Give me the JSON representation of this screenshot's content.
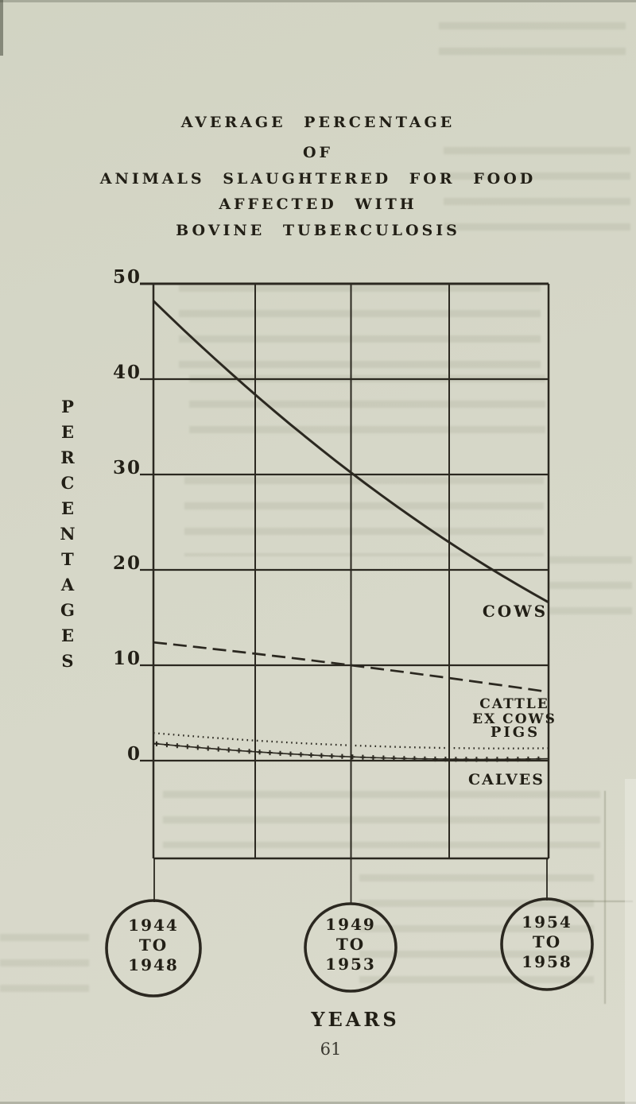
{
  "page": {
    "title_lines": [
      "AVERAGE PERCENTAGE",
      "OF",
      "ANIMALS SLAUGHTERED FOR FOOD",
      "AFFECTED WITH",
      "BOVINE TUBERCULOSIS"
    ],
    "page_number": "61"
  },
  "chart_data": {
    "type": "line",
    "title": "AVERAGE PERCENTAGE OF ANIMALS SLAUGHTERED FOR FOOD AFFECTED WITH BOVINE TUBERCULOSIS",
    "xlabel": "YEARS",
    "ylabel": "PERCENTAGES",
    "ylim": [
      0,
      50
    ],
    "yticks": [
      50,
      40,
      30,
      20,
      10,
      0
    ],
    "ytick_labels": [
      "50",
      "40",
      "30",
      "20",
      "10",
      "0"
    ],
    "grid": true,
    "legend_position": "inline-right",
    "categories": [
      "1944 TO 1948",
      "1949 TO 1953",
      "1954 TO 1958"
    ],
    "category_lines": [
      [
        "1944",
        "TO",
        "1948"
      ],
      [
        "1949",
        "TO",
        "1953"
      ],
      [
        "1954",
        "TO",
        "1958"
      ]
    ],
    "series": [
      {
        "name": "COWS",
        "values": [
          48.2,
          30.2,
          16.6
        ],
        "style": "solid"
      },
      {
        "name": "CATTLE EX COWS",
        "label_lines": [
          "CATTLE",
          "EX COWS"
        ],
        "values": [
          12.4,
          10.0,
          7.2
        ],
        "style": "dashed"
      },
      {
        "name": "PIGS",
        "values": [
          2.9,
          1.6,
          1.3
        ],
        "style": "dotted"
      },
      {
        "name": "CALVES",
        "values": [
          1.8,
          0.4,
          0.2
        ],
        "style": "plus-markers"
      }
    ],
    "ink_color": "#2b2820",
    "paper_color": "#d5d6c7"
  }
}
